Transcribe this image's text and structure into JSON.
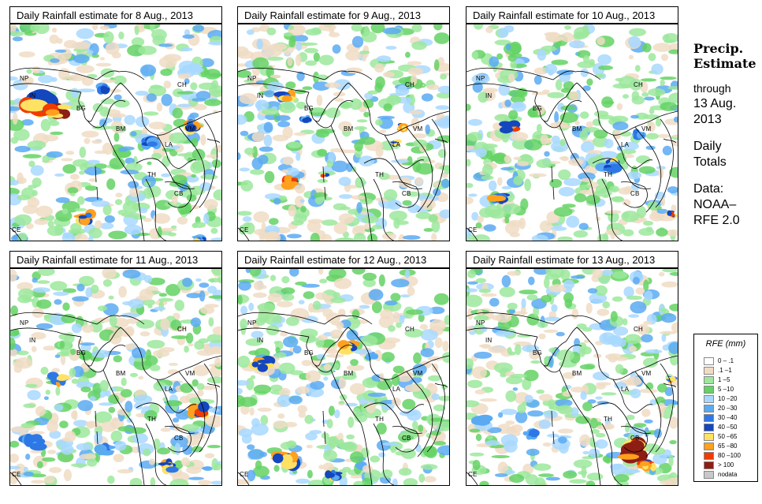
{
  "panels": [
    {
      "title": "Daily Rainfall estimate for  8 Aug., 2013"
    },
    {
      "title": "Daily Rainfall estimate for  9 Aug., 2013"
    },
    {
      "title": "Daily Rainfall estimate for  10 Aug., 2013"
    },
    {
      "title": "Daily Rainfall estimate for  11 Aug., 2013"
    },
    {
      "title": "Daily Rainfall estimate for  12 Aug., 2013"
    },
    {
      "title": "Daily Rainfall estimate for  13 Aug., 2013"
    }
  ],
  "region_labels": {
    "np": "NP",
    "in": "IN",
    "bg": "BG",
    "ch": "CH",
    "bm": "BM",
    "vm": "VM",
    "la": "LA",
    "th": "TH",
    "cb": "CB",
    "ce": "CE"
  },
  "side_info": {
    "heading_line1": "Precip.",
    "heading_line2": "Estimate",
    "through": "through",
    "end_date": "13 Aug.",
    "end_year": "2013",
    "daily": "Daily",
    "totals": "Totals",
    "data_label": "Data:",
    "source_line1": "NOAA–",
    "source_line2": "RFE 2.0"
  },
  "legend": {
    "title": "RFE (mm)",
    "items": [
      {
        "label": "0 – .1",
        "color": "#ffffff"
      },
      {
        "label": ".1 –1",
        "color": "#f0dcc4"
      },
      {
        "label": "1 –5",
        "color": "#9ce89c"
      },
      {
        "label": "5 –10",
        "color": "#64d264"
      },
      {
        "label": "10 –20",
        "color": "#a8d8ff"
      },
      {
        "label": "20 –30",
        "color": "#5aaaf2"
      },
      {
        "label": "30 –40",
        "color": "#2d78e6"
      },
      {
        "label": "40 –50",
        "color": "#1446be"
      },
      {
        "label": "50 –65",
        "color": "#ffe264"
      },
      {
        "label": "65 –80",
        "color": "#ffa01e"
      },
      {
        "label": "80 –100",
        "color": "#f03c00"
      },
      {
        "label": "> 100",
        "color": "#8c1e14"
      },
      {
        "label": "nodata",
        "color": "#c8c8c8"
      }
    ]
  }
}
